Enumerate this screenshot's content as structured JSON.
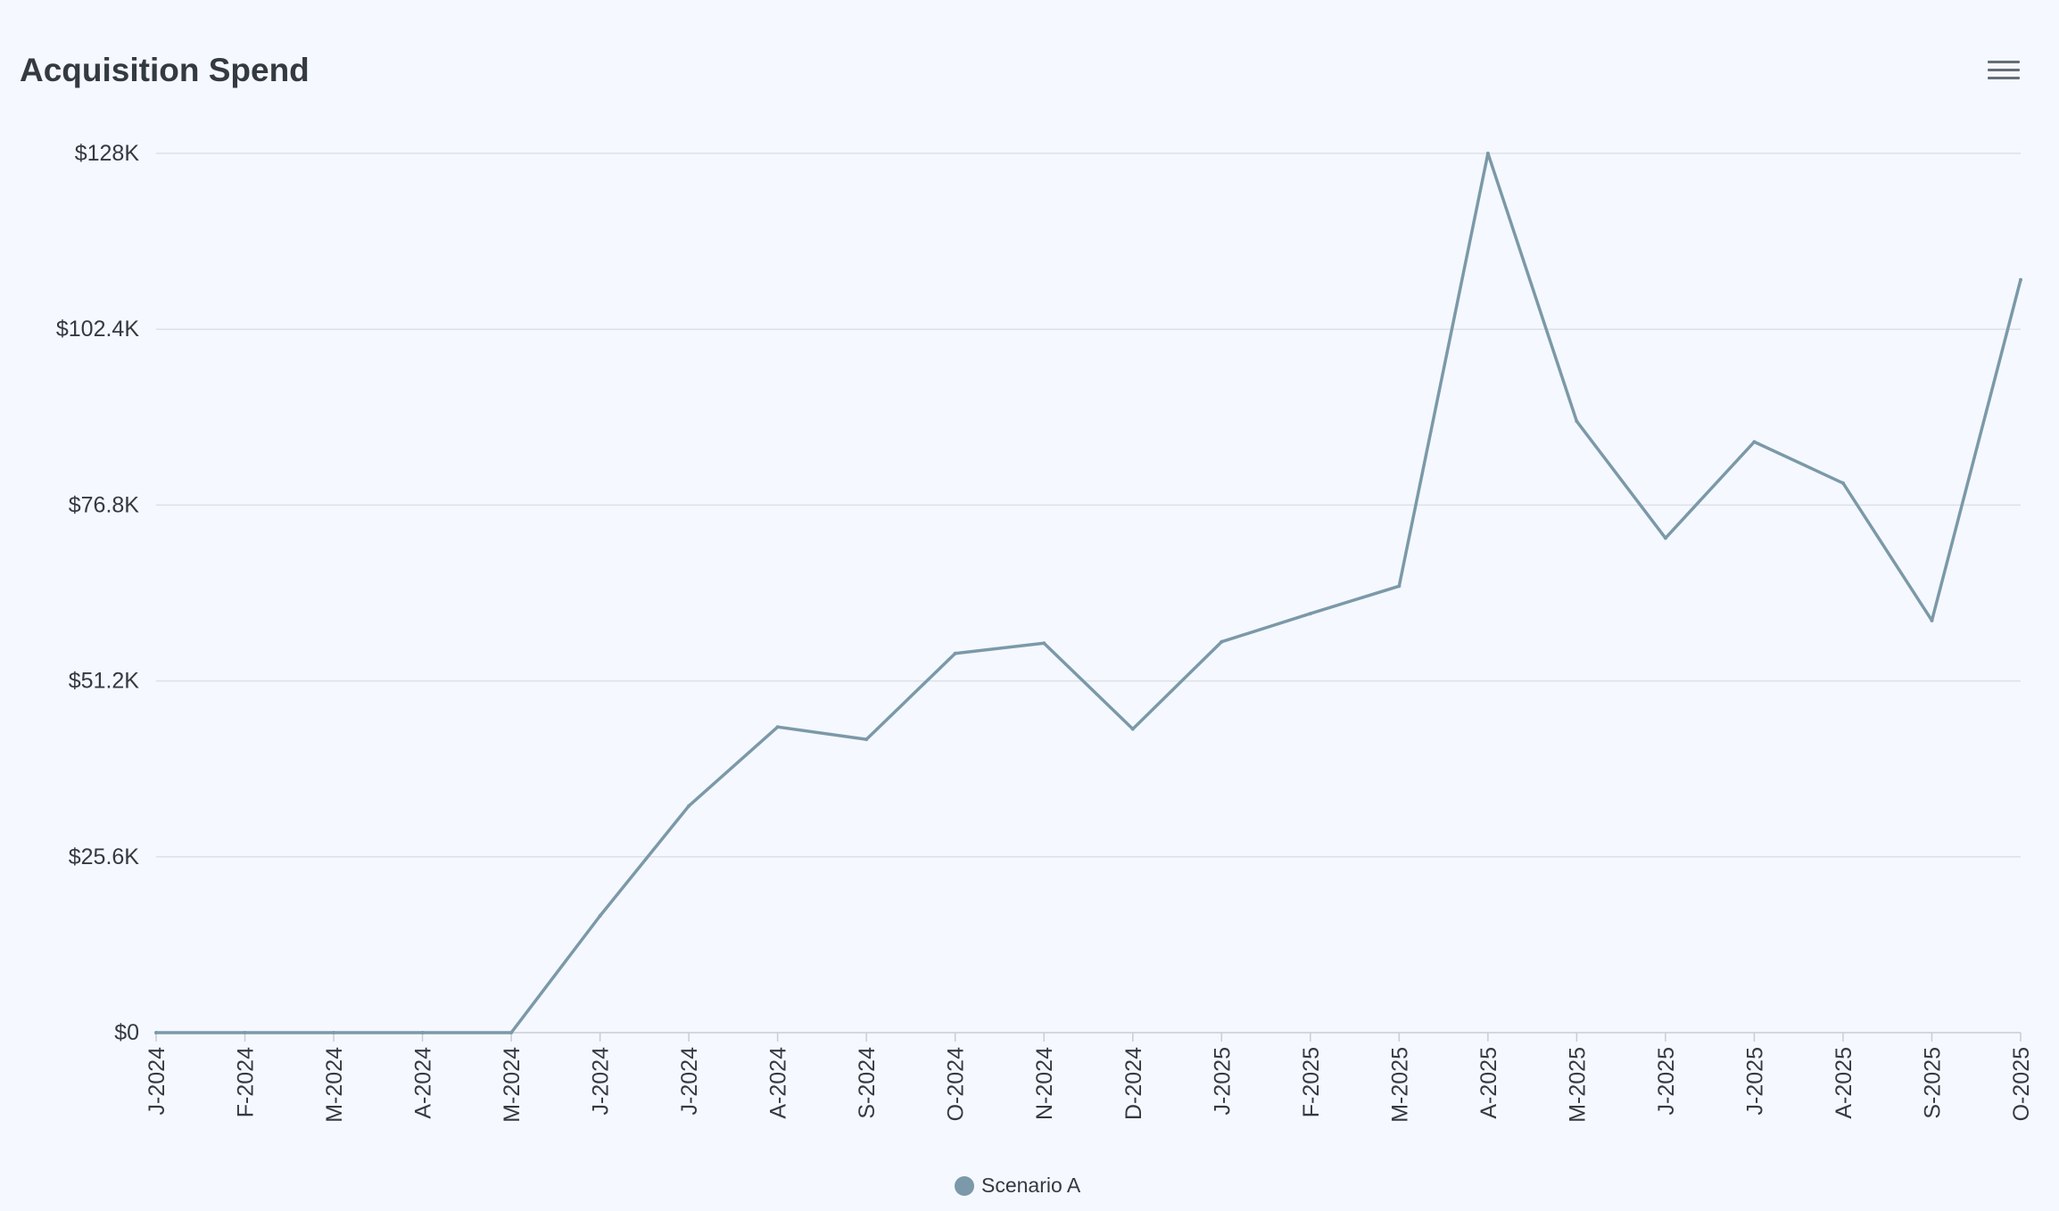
{
  "header": {
    "title": "Acquisition Spend",
    "menu_icon": "hamburger-menu-icon"
  },
  "colors": {
    "background": "#f5f8fe",
    "series": "#7b99a8",
    "grid": "#dde1e6",
    "text": "#333a40"
  },
  "legend": {
    "items": [
      {
        "label": "Scenario A",
        "color": "#7b99a8"
      }
    ],
    "placement": "bottom-center"
  },
  "chart_data": {
    "type": "line",
    "title": "Acquisition Spend",
    "xlabel": "",
    "ylabel": "",
    "categories": [
      "J-2024",
      "F-2024",
      "M-2024",
      "A-2024",
      "M-2024",
      "J-2024",
      "J-2024",
      "A-2024",
      "S-2024",
      "O-2024",
      "N-2024",
      "D-2024",
      "J-2025",
      "F-2025",
      "M-2025",
      "A-2025",
      "M-2025",
      "J-2025",
      "J-2025",
      "A-2025",
      "S-2025",
      "O-2025"
    ],
    "series": [
      {
        "name": "Scenario A",
        "values": [
          0,
          0,
          0,
          0,
          0,
          17000,
          33000,
          44500,
          42700,
          55200,
          56700,
          44200,
          56900,
          61000,
          65000,
          128000,
          89000,
          72000,
          86000,
          80000,
          60000,
          109600
        ]
      }
    ],
    "ylim": [
      0,
      128000
    ],
    "yticks": [
      "$0",
      "$25.6K",
      "$51.2K",
      "$76.8K",
      "$102.4K",
      "$128K"
    ],
    "ytick_values": [
      0,
      25600,
      51200,
      76800,
      102400,
      128000
    ],
    "grid": true,
    "legend": "bottom-center"
  }
}
